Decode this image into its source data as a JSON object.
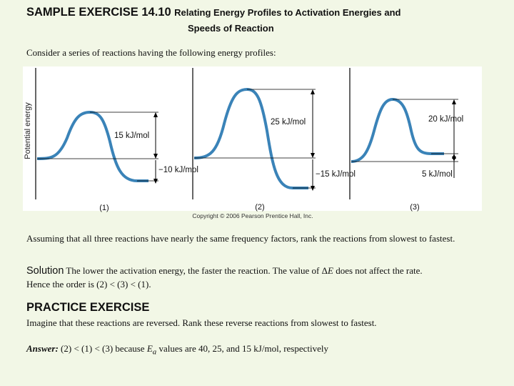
{
  "header": {
    "title_main": "SAMPLE EXERCISE 14.10",
    "title_sub_1": "Relating Energy Profiles to Activation Energies and",
    "title_sub_2": "Speeds of Reaction"
  },
  "intro": "Consider a series of reactions having the following energy profiles:",
  "figure": {
    "y_axis_label": "Potential energy",
    "copyright": "Copyright © 2006 Pearson Prentice Hall, Inc.",
    "profiles": [
      {
        "number": "(1)",
        "activation_label": "15 kJ/mol",
        "delta_label": "−10 kJ/mol",
        "activation_energy_kj": 15,
        "delta_e_kj": -10
      },
      {
        "number": "(2)",
        "activation_label": "25 kJ/mol",
        "delta_label": "−15 kJ/mol",
        "activation_energy_kj": 25,
        "delta_e_kj": -15
      },
      {
        "number": "(3)",
        "activation_label": "20 kJ/mol",
        "delta_label": "5 kJ/mol",
        "activation_energy_kj": 20,
        "delta_e_kj": 5
      }
    ]
  },
  "question": "Assuming that all three reactions have nearly the same frequency factors, rank the reactions from slowest to fastest.",
  "solution": {
    "label": "Solution",
    "text_before": "The lower the activation energy, the faster the reaction. The value of ",
    "delta_symbol": "Δ",
    "e_symbol": "E",
    "text_after": " does not affect the rate.",
    "order": "Hence the order is (2) < (3) < (1)."
  },
  "practice": {
    "heading": "PRACTICE EXERCISE",
    "question": "Imagine that these reactions are reversed. Rank these reverse reactions from slowest to fastest.",
    "answer_label": "Answer:",
    "answer_before": "(2) < (1) < (3) because ",
    "ea_symbol": "E",
    "ea_subscript": "a",
    "answer_after": " values are 40, 25, and 15 kJ/mol, respectively"
  },
  "colors": {
    "page_background": "#f2f7e6",
    "curve": "#3a83b8",
    "figure_background": "#ffffff"
  }
}
